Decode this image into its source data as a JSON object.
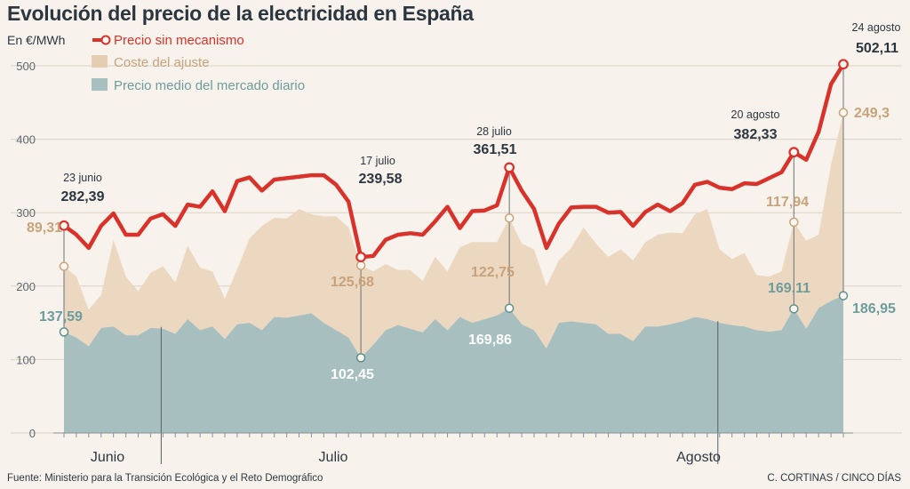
{
  "title": "Evolución del precio de la electricidad en España",
  "source": "Fuente: Ministerio para la Transición Ecológica y el Reto Demográfico",
  "credit": "C. CORTINAS / CINCO DÍAS",
  "colors": {
    "background": "#f7f3ec",
    "precio_line": "#d9322b",
    "coste_area": "#ecd8c1",
    "mercado_area": "#a8bfbf",
    "coste_label": "#c8a27a",
    "mercado_label": "#6e9c9c",
    "text": "#2c3640"
  },
  "chart_data": {
    "type": "area",
    "title": "Evolución del precio de la electricidad en España",
    "ylabel": "En €/MWh",
    "ylim": [
      0,
      530
    ],
    "yticks": [
      0,
      100,
      200,
      300,
      400,
      500
    ],
    "grid": true,
    "legend": [
      {
        "key": "precio",
        "label": "Precio sin mecanismo",
        "type": "line"
      },
      {
        "key": "coste",
        "label": "Coste del ajuste",
        "type": "area"
      },
      {
        "key": "mercado",
        "label": "Precio medio del mercado diario",
        "type": "area"
      }
    ],
    "months": [
      "Junio",
      "Julio",
      "Agosto"
    ],
    "x_start": "23 junio",
    "x_end": "24 agosto",
    "series": [
      {
        "name": "Precio sin mecanismo",
        "key": "precio",
        "values": [
          282.39,
          270,
          252,
          282,
          299,
          270,
          270,
          292,
          298,
          282,
          311,
          308,
          329,
          302,
          343,
          348,
          330,
          345,
          347,
          349,
          351,
          351,
          338,
          315,
          239.58,
          241,
          263,
          270,
          272,
          270,
          288,
          308,
          279,
          302,
          303,
          310,
          361.51,
          330,
          305,
          252,
          285,
          307,
          308,
          308,
          300,
          301,
          282,
          301,
          311,
          302,
          313,
          338,
          342,
          334,
          332,
          340,
          339,
          347,
          355,
          382.33,
          372,
          410,
          475,
          502.11
        ]
      },
      {
        "name": "Precio medio del mercado diario",
        "key": "mercado",
        "values": [
          137.59,
          130,
          118,
          143,
          145,
          133,
          133,
          143,
          142,
          135,
          155,
          140,
          145,
          128,
          148,
          150,
          140,
          158,
          157,
          160,
          163,
          150,
          140,
          130,
          102.45,
          120,
          140,
          147,
          142,
          137,
          155,
          140,
          158,
          150,
          155,
          160,
          169.86,
          148,
          140,
          115,
          150,
          152,
          150,
          148,
          135,
          135,
          125,
          145,
          145,
          148,
          152,
          158,
          155,
          150,
          147,
          145,
          140,
          138,
          140,
          169.11,
          142,
          170,
          180,
          186.95
        ]
      },
      {
        "name": "Coste del ajuste",
        "key": "coste",
        "values": [
          89.31,
          83,
          50,
          45,
          118,
          80,
          60,
          75,
          85,
          70,
          100,
          85,
          75,
          55,
          75,
          115,
          142,
          135,
          135,
          145,
          135,
          145,
          155,
          150,
          125.68,
          100,
          90,
          75,
          80,
          70,
          85,
          80,
          95,
          110,
          105,
          100,
          122.75,
          110,
          110,
          85,
          85,
          100,
          130,
          110,
          105,
          115,
          110,
          115,
          125,
          125,
          120,
          140,
          150,
          100,
          90,
          100,
          75,
          75,
          80,
          117.94,
          120,
          100,
          185,
          249.3
        ]
      }
    ],
    "annotations": [
      {
        "date": "23 junio",
        "precio": "282,39",
        "coste": "89,31",
        "mercado": "137,59"
      },
      {
        "date": "17 julio",
        "precio": "239,58",
        "coste": "125,68",
        "mercado": "102,45"
      },
      {
        "date": "28 julio",
        "precio": "361,51",
        "coste": "122,75",
        "mercado": "169,86"
      },
      {
        "date": "20 agosto",
        "precio": "382,33",
        "coste": "117,94",
        "mercado": "169,11"
      },
      {
        "date": "24 agosto",
        "precio": "502,11",
        "coste": "249,3",
        "mercado": "186,95"
      }
    ]
  }
}
